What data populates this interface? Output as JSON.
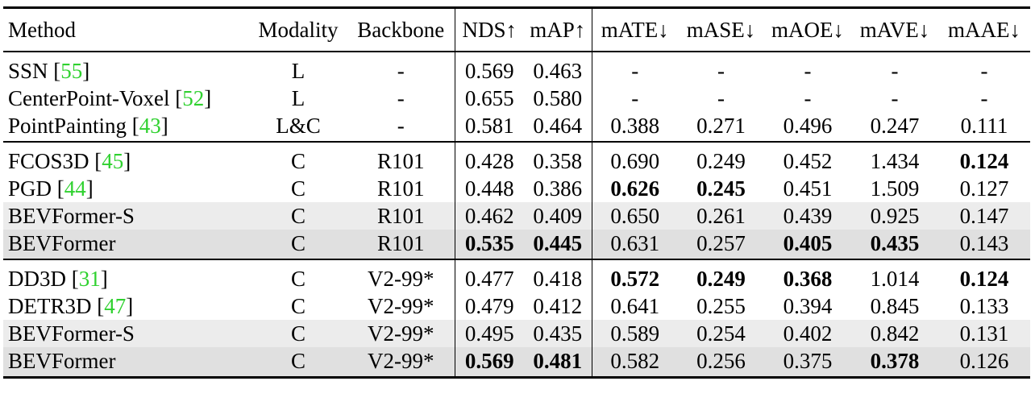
{
  "headers": {
    "method": "Method",
    "modality": "Modality",
    "backbone": "Backbone",
    "nds": "NDS↑",
    "map": "mAP↑",
    "mate": "mATE↓",
    "mase": "mASE↓",
    "maoe": "mAOE↓",
    "mave": "mAVE↓",
    "maae": "mAAE↓"
  },
  "groups": [
    {
      "rows": [
        {
          "method": "SSN",
          "cite": "55",
          "modality": "L",
          "backbone": "-",
          "nds": "0.569",
          "map": "0.463",
          "mate": "-",
          "mase": "-",
          "maoe": "-",
          "mave": "-",
          "maae": "-",
          "bold": [],
          "shade": ""
        },
        {
          "method": "CenterPoint-Voxel",
          "cite": "52",
          "modality": "L",
          "backbone": "-",
          "nds": "0.655",
          "map": "0.580",
          "mate": "-",
          "mase": "-",
          "maoe": "-",
          "mave": "-",
          "maae": "-",
          "bold": [],
          "shade": ""
        },
        {
          "method": "PointPainting",
          "cite": "43",
          "modality": "L&C",
          "backbone": "-",
          "nds": "0.581",
          "map": "0.464",
          "mate": "0.388",
          "mase": "0.271",
          "maoe": "0.496",
          "mave": "0.247",
          "maae": "0.111",
          "bold": [],
          "shade": ""
        }
      ]
    },
    {
      "rows": [
        {
          "method": "FCOS3D",
          "cite": "45",
          "modality": "C",
          "backbone": "R101",
          "nds": "0.428",
          "map": "0.358",
          "mate": "0.690",
          "mase": "0.249",
          "maoe": "0.452",
          "mave": "1.434",
          "maae": "0.124",
          "bold": [
            "maae"
          ],
          "shade": ""
        },
        {
          "method": "PGD",
          "cite": "44",
          "modality": "C",
          "backbone": "R101",
          "nds": "0.448",
          "map": "0.386",
          "mate": "0.626",
          "mase": "0.245",
          "maoe": "0.451",
          "mave": "1.509",
          "maae": "0.127",
          "bold": [
            "mate",
            "mase"
          ],
          "shade": ""
        },
        {
          "method": "BEVFormer-S",
          "cite": "",
          "modality": "C",
          "backbone": "R101",
          "nds": "0.462",
          "map": "0.409",
          "mate": "0.650",
          "mase": "0.261",
          "maoe": "0.439",
          "mave": "0.925",
          "maae": "0.147",
          "bold": [],
          "shade": "light"
        },
        {
          "method": "BEVFormer",
          "cite": "",
          "modality": "C",
          "backbone": "R101",
          "nds": "0.535",
          "map": "0.445",
          "mate": "0.631",
          "mase": "0.257",
          "maoe": "0.405",
          "mave": "0.435",
          "maae": "0.143",
          "bold": [
            "nds",
            "map",
            "maoe",
            "mave"
          ],
          "shade": "dark"
        }
      ]
    },
    {
      "rows": [
        {
          "method": "DD3D",
          "cite": "31",
          "modality": "C",
          "backbone": "V2-99*",
          "nds": "0.477",
          "map": "0.418",
          "mate": "0.572",
          "mase": "0.249",
          "maoe": "0.368",
          "mave": "1.014",
          "maae": "0.124",
          "bold": [
            "mate",
            "mase",
            "maoe",
            "maae"
          ],
          "shade": ""
        },
        {
          "method": "DETR3D",
          "cite": "47",
          "modality": "C",
          "backbone": "V2-99*",
          "nds": "0.479",
          "map": "0.412",
          "mate": "0.641",
          "mase": "0.255",
          "maoe": "0.394",
          "mave": "0.845",
          "maae": "0.133",
          "bold": [],
          "shade": ""
        },
        {
          "method": "BEVFormer-S",
          "cite": "",
          "modality": "C",
          "backbone": "V2-99*",
          "nds": "0.495",
          "map": "0.435",
          "mate": "0.589",
          "mase": "0.254",
          "maoe": "0.402",
          "mave": "0.842",
          "maae": "0.131",
          "bold": [],
          "shade": "light"
        },
        {
          "method": "BEVFormer",
          "cite": "",
          "modality": "C",
          "backbone": "V2-99*",
          "nds": "0.569",
          "map": "0.481",
          "mate": "0.582",
          "mase": "0.256",
          "maoe": "0.375",
          "mave": "0.378",
          "maae": "0.126",
          "bold": [
            "nds",
            "map",
            "mave"
          ],
          "shade": "dark"
        }
      ]
    }
  ]
}
